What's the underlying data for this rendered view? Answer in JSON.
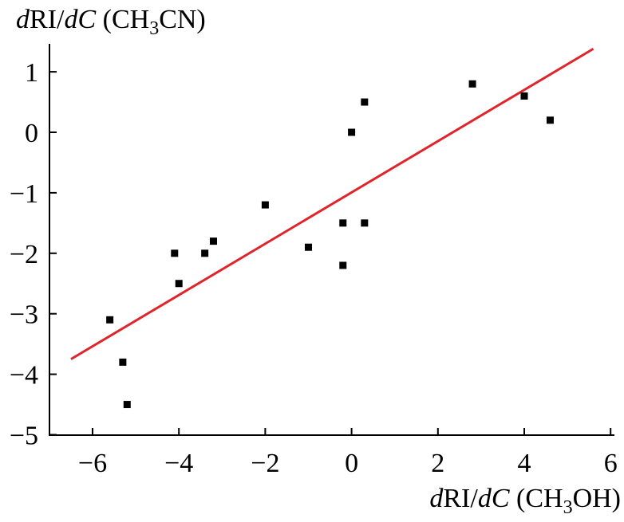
{
  "chart_data": {
    "type": "scatter",
    "title": "",
    "xlabel_parts": {
      "var_italic_prefix": "d",
      "var_roman": "RI/",
      "var_italic_suffix": "dC",
      "paren_open": " (CH",
      "subscript": "3",
      "paren_close": "OH)"
    },
    "ylabel_parts": {
      "var_italic_prefix": "d",
      "var_roman": "RI/",
      "var_italic_suffix": "dC",
      "paren_open": " (CH",
      "subscript": "3",
      "paren_close": "CN)"
    },
    "xlim": [
      -7,
      6
    ],
    "ylim": [
      -5,
      1.5
    ],
    "xticks": [
      -6,
      -4,
      -2,
      0,
      2,
      4,
      6
    ],
    "xtick_labels": [
      "−6",
      "−4",
      "−2",
      "0",
      "2",
      "4",
      "6"
    ],
    "yticks": [
      -5,
      -4,
      -3,
      -2,
      -1,
      0,
      1
    ],
    "ytick_labels": [
      "−5",
      "−4",
      "−3",
      "−2",
      "−1",
      "0",
      "1"
    ],
    "grid": false,
    "points": [
      {
        "x": -5.6,
        "y": -3.1
      },
      {
        "x": -5.3,
        "y": -3.8
      },
      {
        "x": -5.2,
        "y": -4.5
      },
      {
        "x": -4.1,
        "y": -2.0
      },
      {
        "x": -4.0,
        "y": -2.5
      },
      {
        "x": -3.4,
        "y": -2.0
      },
      {
        "x": -3.2,
        "y": -1.8
      },
      {
        "x": -2.0,
        "y": -1.2
      },
      {
        "x": -1.0,
        "y": -1.9
      },
      {
        "x": -0.2,
        "y": -1.5
      },
      {
        "x": -0.2,
        "y": -2.2
      },
      {
        "x": 0.3,
        "y": -1.5
      },
      {
        "x": 0.0,
        "y": 0.0
      },
      {
        "x": 0.3,
        "y": 0.5
      },
      {
        "x": 2.8,
        "y": 0.8
      },
      {
        "x": 4.0,
        "y": 0.6
      },
      {
        "x": 4.6,
        "y": 0.2
      }
    ],
    "fit_line": {
      "x": [
        -6.5,
        5.6
      ],
      "y": [
        -3.75,
        1.38
      ]
    },
    "colors": {
      "points": "#000000",
      "fit_line": "#e0242b",
      "axes": "#000000"
    }
  }
}
